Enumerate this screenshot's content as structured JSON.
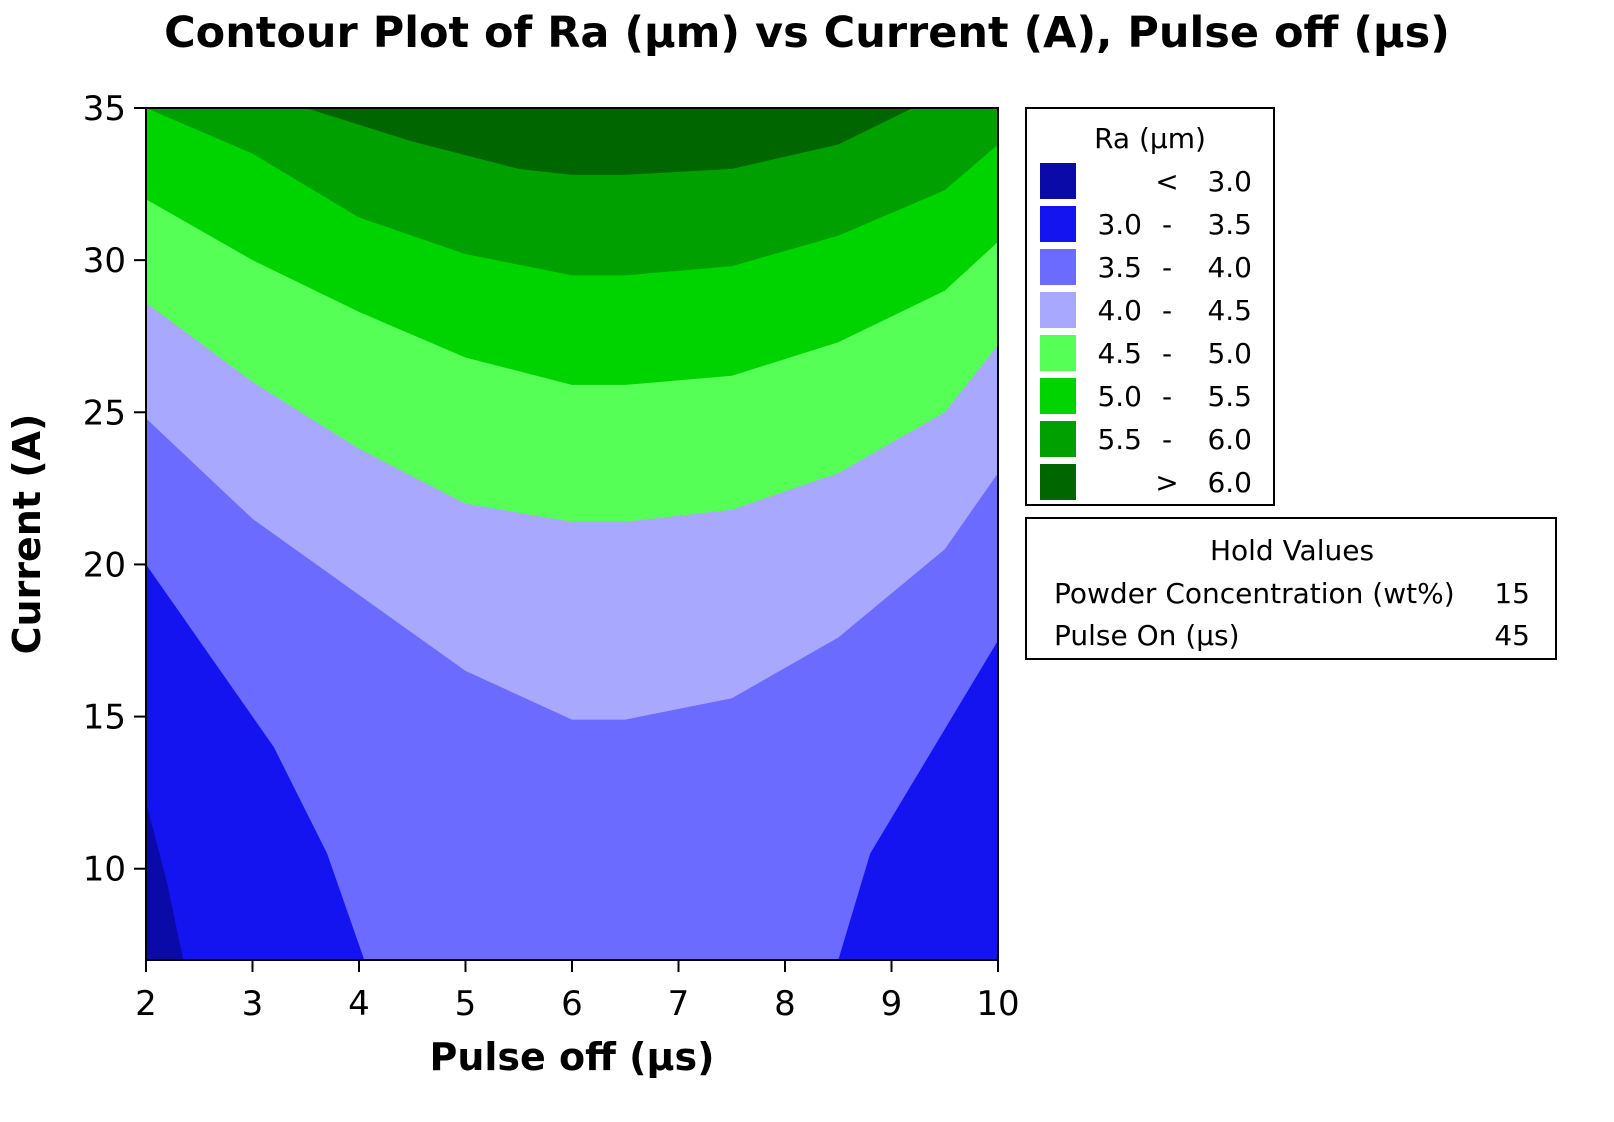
{
  "chart_data": {
    "type": "contour",
    "title": "Contour Plot of Ra (µm) vs Current (A), Pulse off (µs)",
    "xlabel": "Pulse off (µs)",
    "ylabel": "Current (A)",
    "xlim": [
      2,
      10
    ],
    "ylim": [
      7,
      35
    ],
    "x_ticks": [
      "2",
      "3",
      "4",
      "5",
      "6",
      "7",
      "8",
      "9",
      "10"
    ],
    "y_ticks": [
      "10",
      "15",
      "20",
      "25",
      "30",
      "35"
    ],
    "grid": false,
    "legend_position": "right",
    "legend_title": "Ra (µm)",
    "levels": [
      {
        "low": "",
        "sep": "<",
        "high": "3.0",
        "color": "#0a0aa8"
      },
      {
        "low": "3.0",
        "sep": "-",
        "high": "3.5",
        "color": "#1414f0"
      },
      {
        "low": "3.5",
        "sep": "-",
        "high": "4.0",
        "color": "#6b6bff"
      },
      {
        "low": "4.0",
        "sep": "-",
        "high": "4.5",
        "color": "#a8a8ff"
      },
      {
        "low": "4.5",
        "sep": "-",
        "high": "5.0",
        "color": "#55ff55"
      },
      {
        "low": "5.0",
        "sep": "-",
        "high": "5.5",
        "color": "#00d400"
      },
      {
        "low": "5.5",
        "sep": "-",
        "high": "6.0",
        "color": "#00a000"
      },
      {
        "low": "",
        "sep": ">",
        "high": "6.0",
        "color": "#006600"
      }
    ],
    "contour_boundaries": [
      {
        "level": 3.0,
        "points": [
          [
            2.0,
            12.2
          ],
          [
            2.2,
            9.5
          ],
          [
            2.35,
            7.0
          ]
        ]
      },
      {
        "level": 3.5,
        "points": [
          [
            2.0,
            20.0
          ],
          [
            2.6,
            17.0
          ],
          [
            3.2,
            14.0
          ],
          [
            3.7,
            10.5
          ],
          [
            4.05,
            7.0
          ]
        ],
        "segment": "left"
      },
      {
        "level": 3.5,
        "points": [
          [
            8.5,
            7.0
          ],
          [
            8.8,
            10.5
          ],
          [
            9.4,
            14.0
          ],
          [
            10.0,
            17.5
          ]
        ],
        "segment": "right"
      },
      {
        "level": 4.0,
        "points": [
          [
            2.0,
            24.8
          ],
          [
            3.0,
            21.5
          ],
          [
            4.0,
            19.0
          ],
          [
            5.0,
            16.5
          ],
          [
            6.0,
            14.9
          ],
          [
            6.5,
            14.9
          ],
          [
            7.5,
            15.6
          ],
          [
            8.5,
            17.6
          ],
          [
            9.5,
            20.5
          ],
          [
            10.0,
            23.0
          ]
        ]
      },
      {
        "level": 4.5,
        "points": [
          [
            2.0,
            28.6
          ],
          [
            3.0,
            26.0
          ],
          [
            4.0,
            23.8
          ],
          [
            5.0,
            22.0
          ],
          [
            6.0,
            21.4
          ],
          [
            6.5,
            21.4
          ],
          [
            7.5,
            21.8
          ],
          [
            8.5,
            23.0
          ],
          [
            9.5,
            25.0
          ],
          [
            10.0,
            27.2
          ]
        ]
      },
      {
        "level": 5.0,
        "points": [
          [
            2.0,
            32.0
          ],
          [
            3.0,
            30.0
          ],
          [
            4.0,
            28.3
          ],
          [
            5.0,
            26.8
          ],
          [
            6.0,
            25.9
          ],
          [
            6.5,
            25.9
          ],
          [
            7.5,
            26.2
          ],
          [
            8.5,
            27.3
          ],
          [
            9.5,
            29.0
          ],
          [
            10.0,
            30.6
          ]
        ]
      },
      {
        "level": 5.5,
        "points": [
          [
            2.0,
            35.0
          ],
          [
            3.0,
            33.5
          ],
          [
            4.0,
            31.4
          ],
          [
            5.0,
            30.2
          ],
          [
            6.0,
            29.5
          ],
          [
            6.5,
            29.5
          ],
          [
            7.5,
            29.8
          ],
          [
            8.5,
            30.8
          ],
          [
            9.5,
            32.3
          ],
          [
            10.0,
            33.8
          ]
        ]
      },
      {
        "level": 6.0,
        "points": [
          [
            3.5,
            35.0
          ],
          [
            4.5,
            33.9
          ],
          [
            5.5,
            33.0
          ],
          [
            6.0,
            32.8
          ],
          [
            6.5,
            32.8
          ],
          [
            7.5,
            33.0
          ],
          [
            8.5,
            33.8
          ],
          [
            9.2,
            35.0
          ]
        ]
      }
    ]
  },
  "hold_values": {
    "title": "Hold Values",
    "items": [
      {
        "name": "Powder Concentration (wt%)",
        "value": "15"
      },
      {
        "name": "Pulse On (µs)",
        "value": "45"
      }
    ]
  }
}
